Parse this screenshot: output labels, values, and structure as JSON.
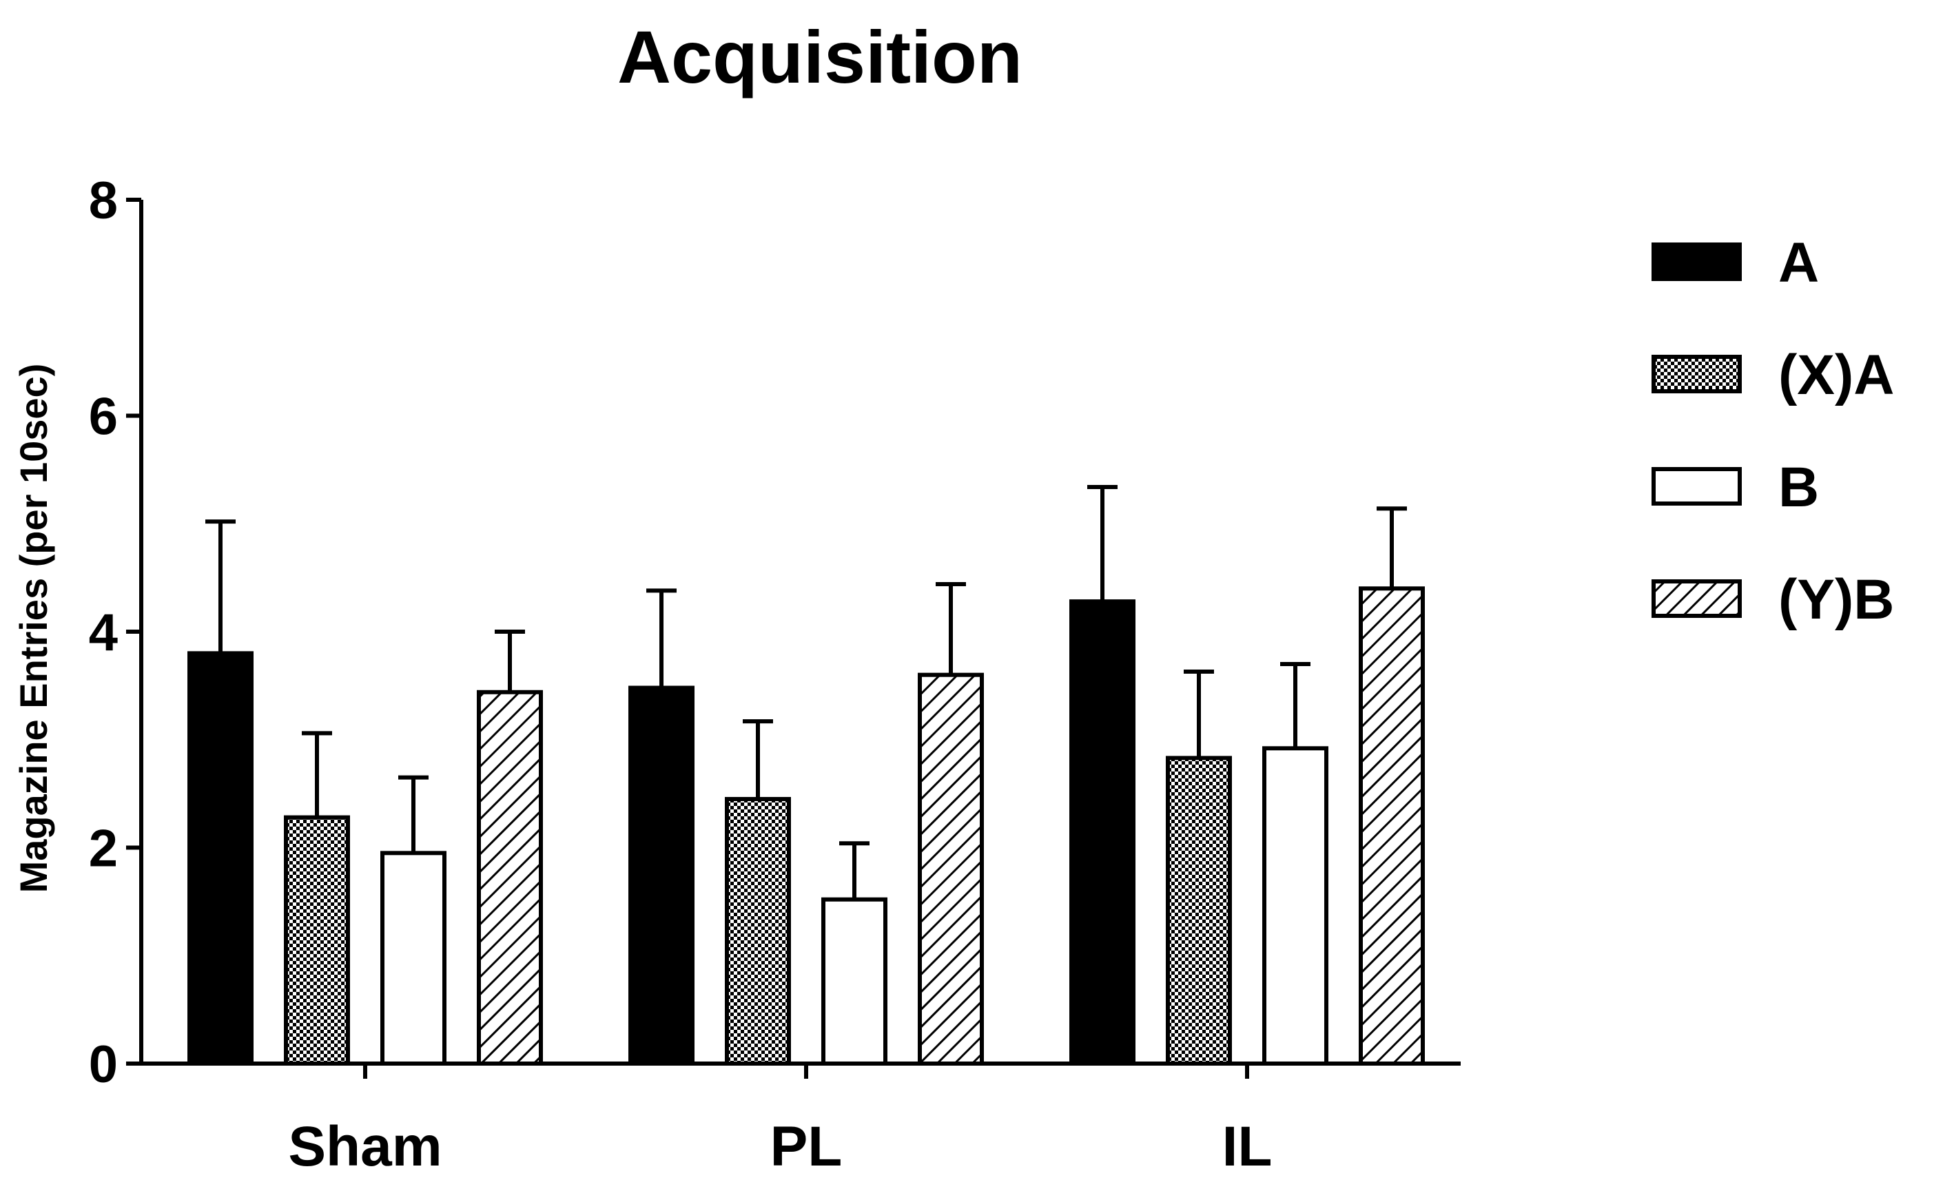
{
  "chart_data": {
    "type": "bar",
    "title": "Acquisition",
    "xlabel": "",
    "ylabel": "Magazine Entries (per 10sec)",
    "ylim": [
      0,
      8
    ],
    "yticks": [
      0,
      2,
      4,
      6,
      8
    ],
    "categories": [
      "Sham",
      "PL",
      "IL"
    ],
    "grid": false,
    "legend_position": "right",
    "series": [
      {
        "name": "A",
        "fill": "solid",
        "color": "#000000",
        "values": [
          3.8,
          3.48,
          4.28
        ],
        "errors": [
          1.22,
          0.9,
          1.06
        ]
      },
      {
        "name": "(X)A",
        "fill": "checker",
        "color": "#000000",
        "values": [
          2.28,
          2.45,
          2.83
        ],
        "errors": [
          0.78,
          0.72,
          0.8
        ]
      },
      {
        "name": "B",
        "fill": "empty",
        "color": "#000000",
        "values": [
          1.95,
          1.52,
          2.92
        ],
        "errors": [
          0.7,
          0.52,
          0.78
        ]
      },
      {
        "name": "(Y)B",
        "fill": "hatch",
        "color": "#000000",
        "values": [
          3.44,
          3.6,
          4.4
        ],
        "errors": [
          0.56,
          0.84,
          0.74
        ]
      }
    ]
  }
}
